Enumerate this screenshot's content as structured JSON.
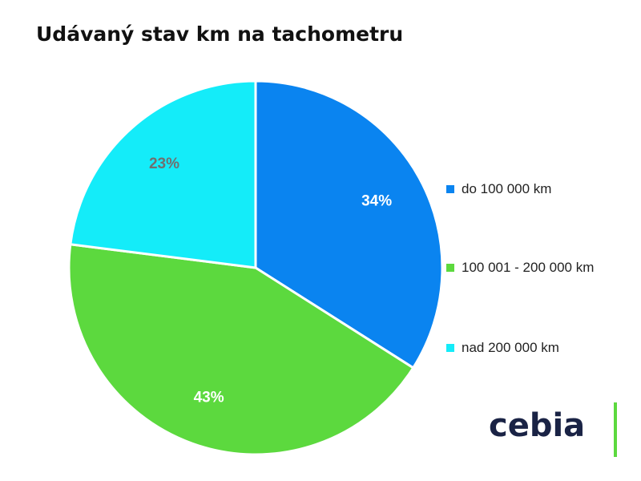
{
  "chart_data": {
    "type": "pie",
    "title": "Udávaný stav km na tachometru",
    "categories": [
      "do 100 000 km",
      "100 001 - 200 000 km",
      "nad 200 000 km"
    ],
    "values": [
      34,
      43,
      23
    ],
    "value_labels": [
      "34%",
      "43%",
      "23%"
    ],
    "colors": [
      "#0a84f0",
      "#5cd93e",
      "#14ecf9"
    ],
    "label_colors": [
      "#ffffff",
      "#ffffff",
      "#707070"
    ],
    "legend_position": "right"
  },
  "logo": {
    "text": "cebia",
    "accent_color": "#5cd93e"
  }
}
